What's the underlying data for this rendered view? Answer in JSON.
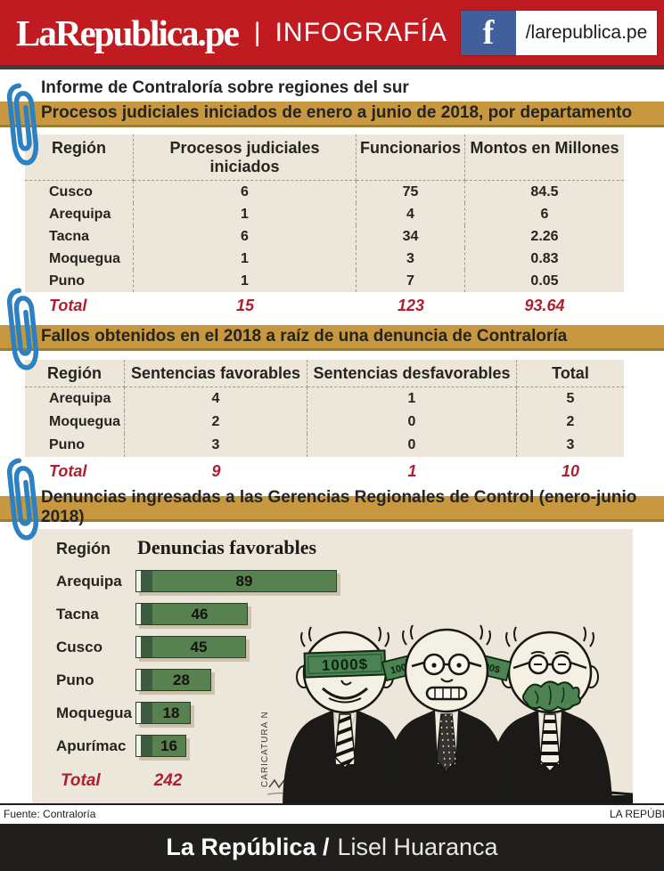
{
  "header": {
    "logo": "LaRepublica.pe",
    "separator": "|",
    "section": "INFOGRAFÍA",
    "facebook_icon": "f",
    "facebook_handle": "/larepublica.pe",
    "bg_color": "#bf1b20",
    "facebook_blue": "#41609b"
  },
  "page_title": "Informe de Contraloría sobre regiones del sur",
  "chart_data": [
    {
      "type": "table",
      "banner": "Procesos judiciales iniciados de enero a junio de 2018, por departamento",
      "columns": [
        "Región",
        "Procesos judiciales iniciados",
        "Funcionarios",
        "Montos en Millones"
      ],
      "rows": [
        [
          "Cusco",
          "6",
          "75",
          "84.5"
        ],
        [
          "Arequipa",
          "1",
          "4",
          "6"
        ],
        [
          "Tacna",
          "6",
          "34",
          "2.26"
        ],
        [
          "Moquegua",
          "1",
          "3",
          "0.83"
        ],
        [
          "Puno",
          "1",
          "7",
          "0.05"
        ]
      ],
      "total_label": "Total",
      "totals": [
        "15",
        "123",
        "93.64"
      ]
    },
    {
      "type": "table",
      "banner": "Fallos obtenidos en el 2018 a raíz de una denuncia de Contraloría",
      "columns": [
        "Región",
        "Sentencias favorables",
        "Sentencias desfavorables",
        "Total"
      ],
      "rows": [
        [
          "Arequipa",
          "4",
          "1",
          "5"
        ],
        [
          "Moquegua",
          "2",
          "0",
          "2"
        ],
        [
          "Puno",
          "3",
          "0",
          "3"
        ]
      ],
      "total_label": "Total",
      "totals": [
        "9",
        "1",
        "10"
      ]
    },
    {
      "type": "bar",
      "banner": "Denuncias ingresadas a las Gerencias Regionales de Control (enero-junio 2018)",
      "orientation": "horizontal",
      "ylabel": "Región",
      "value_label": "Denuncias favorables",
      "categories": [
        "Arequipa",
        "Tacna",
        "Cusco",
        "Puno",
        "Moquegua",
        "Apurímac"
      ],
      "values": [
        89,
        46,
        45,
        28,
        18,
        16
      ],
      "xlim": [
        0,
        89
      ],
      "value_labels_position": "inside bars",
      "bar_color": "#57814f",
      "bar_accent_color": "#3d5c3f",
      "total_label": "Total",
      "total": "242"
    }
  ],
  "cartoon": {
    "blindfold_text": "1000$",
    "ear_bill_left": "1000",
    "ear_bill_right": "00$",
    "signature": "CARICATURA N"
  },
  "footer": {
    "source": "Fuente: Contraloría",
    "brand": "LA REPÚBLICA",
    "credit_bold": "La República /",
    "credit_light": "Lisel Huaranca"
  },
  "colors": {
    "banner_gold": "#c79840",
    "table_beige": "#ece7da",
    "total_red": "#ac2030",
    "paperclip_blue": "#2d81c0",
    "credit_bar_black": "#211f1e"
  }
}
